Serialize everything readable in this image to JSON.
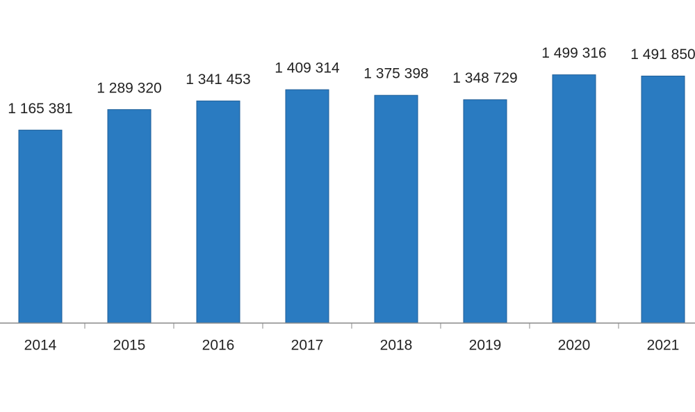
{
  "chart_data": {
    "type": "bar",
    "categories": [
      "2014",
      "2015",
      "2016",
      "2017",
      "2018",
      "2019",
      "2020",
      "2021"
    ],
    "values": [
      1165381,
      1289320,
      1341453,
      1409314,
      1375398,
      1348729,
      1499316,
      1491850
    ],
    "value_labels": [
      "1 165 381",
      "1 289 320",
      "1 341 453",
      "1 409 314",
      "1 375 398",
      "1 348 729",
      "1 499 316",
      "1 491 850"
    ],
    "color": "#2a7bc1",
    "ylim": [
      0,
      1951000
    ]
  }
}
